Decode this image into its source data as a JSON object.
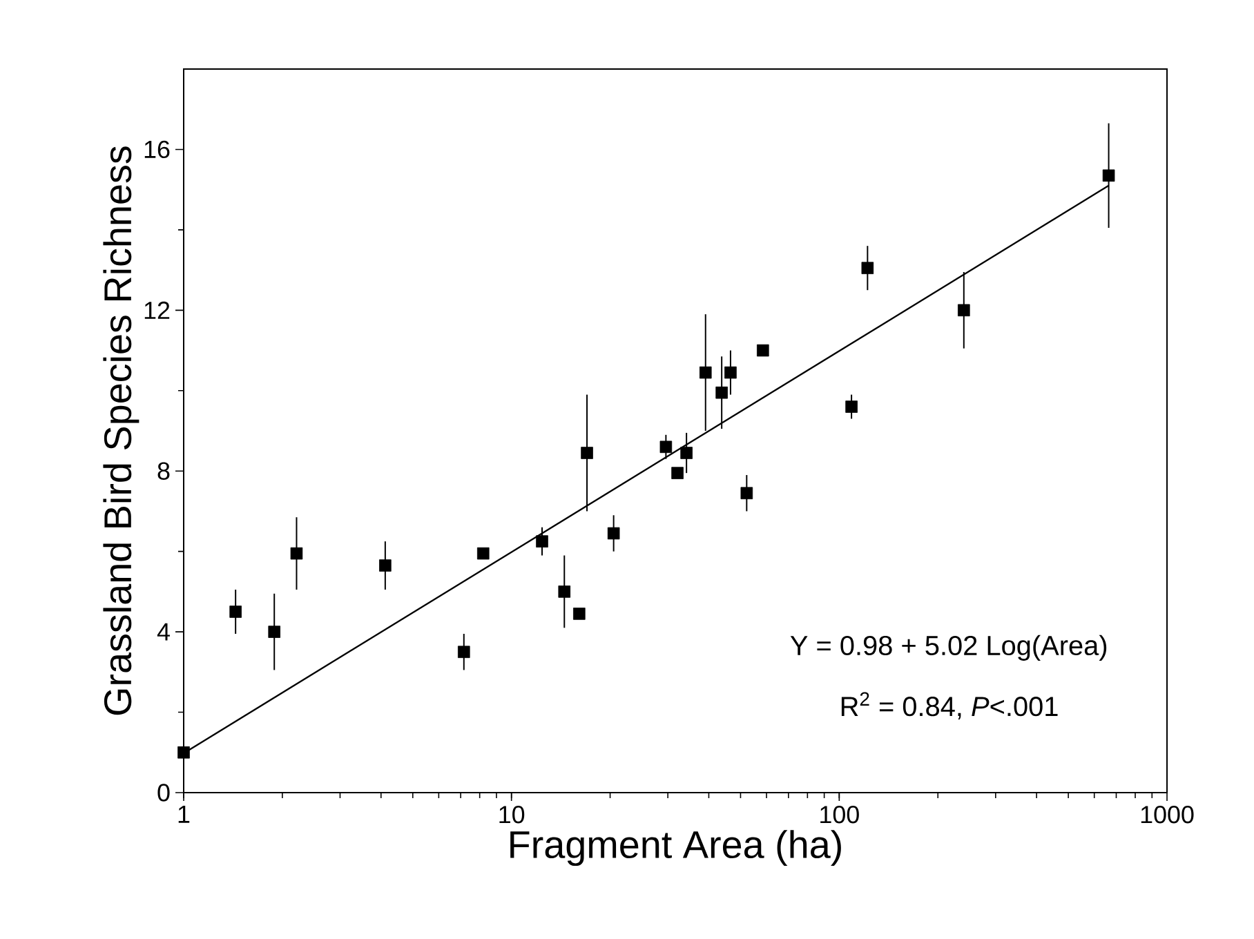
{
  "chart_data": {
    "type": "scatter",
    "xlabel": "Fragment Area (ha)",
    "ylabel": "Grassland Bird Species Richness",
    "log": "x",
    "xlim": [
      1,
      1000
    ],
    "xticks": [
      1,
      10,
      100,
      1000
    ],
    "ylim": [
      0,
      18
    ],
    "yticks": [
      0,
      4,
      8,
      12,
      16
    ],
    "grid": false,
    "series": [
      {
        "marker": "square",
        "color": "#000000",
        "x": [
          1,
          1.44,
          1.89,
          2.21,
          4.12,
          7.16,
          8.2,
          12.4,
          14.5,
          16.1,
          17.0,
          20.5,
          29.6,
          32.1,
          34.2,
          39.1,
          43.8,
          46.6,
          52.2,
          58.5,
          109,
          122,
          240,
          664
        ],
        "values": [
          1.0,
          4.5,
          4.0,
          5.95,
          5.65,
          3.5,
          5.95,
          6.25,
          5.0,
          4.45,
          8.45,
          6.45,
          8.6,
          7.95,
          8.45,
          10.45,
          9.95,
          10.45,
          7.45,
          11.0,
          9.6,
          13.05,
          12.0,
          15.35
        ],
        "errors": [
          null,
          0.55,
          0.95,
          0.9,
          0.6,
          0.45,
          null,
          0.35,
          0.9,
          null,
          1.45,
          0.45,
          0.3,
          null,
          0.5,
          1.45,
          0.9,
          0.55,
          0.45,
          null,
          0.3,
          0.55,
          0.95,
          1.3
        ]
      },
      {
        "type": "line",
        "marker": "none",
        "color": "#000000",
        "x": [
          1,
          664
        ],
        "values": [
          0.98,
          15.1
        ]
      }
    ],
    "annotations": [
      "Y = 0.98 + 5.02 Log(Area)",
      "R$^{2}$ = 0.84, *P*<.001"
    ]
  }
}
